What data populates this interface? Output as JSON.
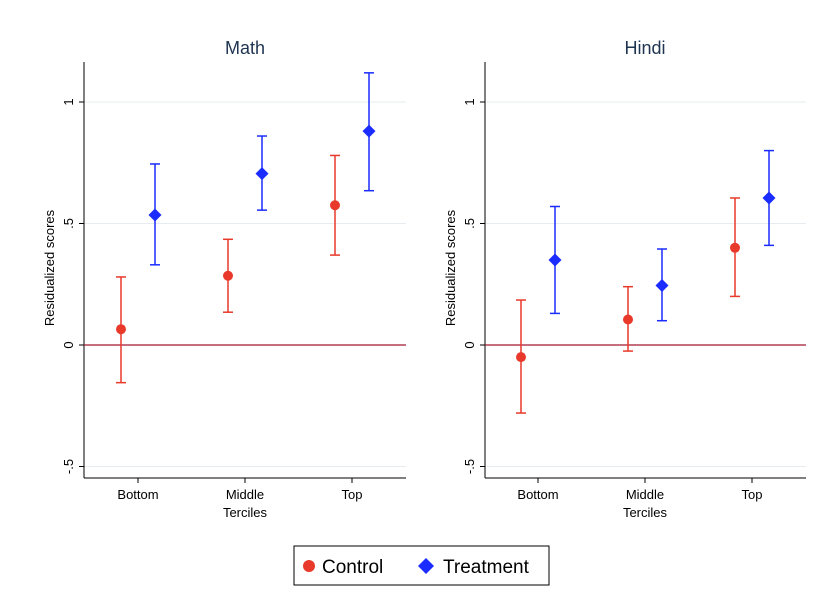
{
  "chart_data": [
    {
      "type": "scatter",
      "title": "Math",
      "ylabel": "Residualized scores",
      "xlabel": "Terciles",
      "ylim": [
        -0.5,
        1.0
      ],
      "yticks": [
        {
          "value": -0.5,
          "label": "-.5"
        },
        {
          "value": 0,
          "label": "0"
        },
        {
          "value": 0.5,
          "label": ".5"
        },
        {
          "value": 1,
          "label": "1"
        }
      ],
      "categories": [
        "Bottom",
        "Middle",
        "Top"
      ],
      "reference_line": 0,
      "grid": true,
      "series": [
        {
          "name": "Control",
          "color": "#e8392a",
          "marker": "circle",
          "values": [
            0.065,
            0.285,
            0.575
          ],
          "ci_low": [
            -0.155,
            0.135,
            0.37
          ],
          "ci_high": [
            0.28,
            0.435,
            0.78
          ]
        },
        {
          "name": "Treatment",
          "color": "#1a2cff",
          "marker": "diamond",
          "values": [
            0.535,
            0.705,
            0.88
          ],
          "ci_low": [
            0.33,
            0.555,
            0.635
          ],
          "ci_high": [
            0.745,
            0.86,
            1.12
          ]
        }
      ]
    },
    {
      "type": "scatter",
      "title": "Hindi",
      "ylabel": "Residualized scores",
      "xlabel": "Terciles",
      "ylim": [
        -0.5,
        1.0
      ],
      "yticks": [
        {
          "value": -0.5,
          "label": "-.5"
        },
        {
          "value": 0,
          "label": "0"
        },
        {
          "value": 0.5,
          "label": ".5"
        },
        {
          "value": 1,
          "label": "1"
        }
      ],
      "categories": [
        "Bottom",
        "Middle",
        "Top"
      ],
      "reference_line": 0,
      "grid": true,
      "series": [
        {
          "name": "Control",
          "color": "#e8392a",
          "marker": "circle",
          "values": [
            -0.05,
            0.105,
            0.4
          ],
          "ci_low": [
            -0.28,
            -0.025,
            0.2
          ],
          "ci_high": [
            0.185,
            0.24,
            0.605
          ]
        },
        {
          "name": "Treatment",
          "color": "#1a2cff",
          "marker": "diamond",
          "values": [
            0.35,
            0.245,
            0.605
          ],
          "ci_low": [
            0.13,
            0.1,
            0.41
          ],
          "ci_high": [
            0.57,
            0.395,
            0.8
          ]
        }
      ]
    }
  ],
  "legend": {
    "position": "bottom",
    "items": [
      {
        "label": "Control",
        "color": "#e8392a",
        "marker": "circle"
      },
      {
        "label": "Treatment",
        "color": "#1a2cff",
        "marker": "diamond"
      }
    ]
  },
  "colors": {
    "control": "#e8392a",
    "treatment": "#1a2cff",
    "reference_line": "#a01830",
    "grid": "#e6ecef",
    "title": "#1e3450"
  }
}
